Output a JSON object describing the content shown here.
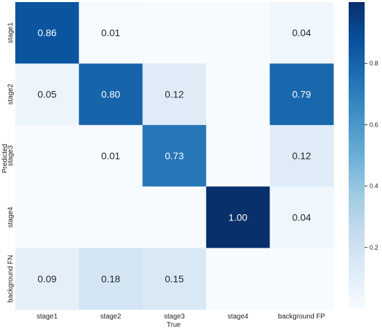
{
  "chart_data": {
    "type": "heatmap",
    "title": "",
    "xlabel": "True",
    "ylabel": "Predicted",
    "x_categories": [
      "stage1",
      "stage2",
      "stage3",
      "stage4",
      "background FP"
    ],
    "y_categories": [
      "stage1",
      "stage2",
      "stage3",
      "stage4",
      "background FN"
    ],
    "values": [
      [
        0.86,
        0.01,
        0.0,
        0.0,
        0.04
      ],
      [
        0.05,
        0.8,
        0.12,
        0.0,
        0.79
      ],
      [
        0.0,
        0.01,
        0.73,
        0.0,
        0.12
      ],
      [
        0.0,
        0.0,
        0.0,
        1.0,
        0.04
      ],
      [
        0.09,
        0.18,
        0.15,
        0.0,
        0.0
      ]
    ],
    "cell_labels": [
      [
        "0.86",
        "0.01",
        "",
        "",
        "0.04"
      ],
      [
        "0.05",
        "0.80",
        "0.12",
        "",
        "0.79"
      ],
      [
        "",
        "0.01",
        "0.73",
        "",
        "0.12"
      ],
      [
        "",
        "",
        "",
        "1.00",
        "0.04"
      ],
      [
        "0.09",
        "0.18",
        "0.15",
        "",
        ""
      ]
    ],
    "colorbar": {
      "colormap": "Blues",
      "range": [
        0,
        1
      ],
      "ticks": [
        "0.2",
        "0.4",
        "0.6",
        "0.8"
      ],
      "tick_values": [
        0.2,
        0.4,
        0.6,
        0.8
      ]
    },
    "grid": false
  }
}
